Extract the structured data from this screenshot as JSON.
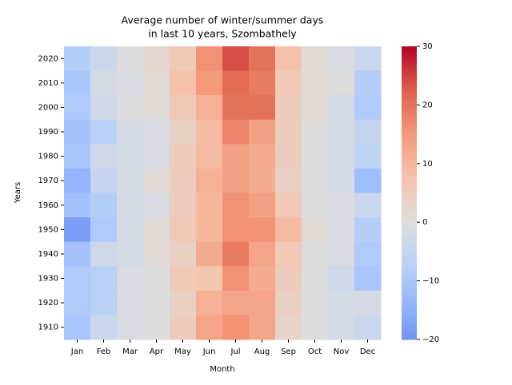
{
  "chart_data": {
    "type": "heatmap",
    "title": [
      "Average number of winter/summer days",
      "in last 10 years, Szombathely"
    ],
    "xlabel": "Month",
    "ylabel": "Years",
    "categories": [
      "Jan",
      "Feb",
      "Mar",
      "Apr",
      "May",
      "Jun",
      "Jul",
      "Aug",
      "Sep",
      "Oct",
      "Nov",
      "Dec"
    ],
    "y_categories": [
      2020,
      2010,
      2000,
      1990,
      1980,
      1970,
      1960,
      1950,
      1940,
      1930,
      1920,
      1910
    ],
    "values": [
      [
        -8,
        -4,
        0,
        2,
        6,
        16,
        24,
        20,
        8,
        1,
        -1,
        -4
      ],
      [
        -10,
        -2,
        -1,
        1,
        8,
        15,
        21,
        19,
        6,
        1,
        0,
        -8
      ],
      [
        -9,
        -3,
        0,
        1,
        6,
        11,
        20,
        20,
        5,
        1,
        -2,
        -9
      ],
      [
        -11,
        -7,
        -2,
        -1,
        4,
        9,
        18,
        14,
        5,
        0,
        -2,
        -5
      ],
      [
        -10,
        -3,
        -2,
        -1,
        5,
        9,
        14,
        12,
        5,
        0,
        -2,
        -6
      ],
      [
        -14,
        -5,
        -2,
        1,
        5,
        11,
        14,
        12,
        4,
        0,
        -2,
        -12
      ],
      [
        -11,
        -8,
        -2,
        -1,
        5,
        10,
        16,
        14,
        6,
        0,
        -1,
        -4
      ],
      [
        -18,
        -9,
        -2,
        1,
        6,
        10,
        16,
        16,
        9,
        1,
        -1,
        -8
      ],
      [
        -11,
        -3,
        -2,
        1,
        4,
        12,
        19,
        13,
        6,
        0,
        -1,
        -9
      ],
      [
        -9,
        -7,
        -1,
        0,
        6,
        7,
        16,
        12,
        5,
        0,
        -3,
        -10
      ],
      [
        -9,
        -7,
        -1,
        0,
        4,
        11,
        13,
        13,
        4,
        0,
        -2,
        -2
      ],
      [
        -10,
        -4,
        -1,
        0,
        5,
        13,
        16,
        13,
        3,
        0,
        -2,
        -4
      ]
    ],
    "colormap": "coolwarm",
    "center": 0,
    "clim": [
      -20,
      30
    ],
    "cticks": [
      {
        "value": -20,
        "label": "−20"
      },
      {
        "value": -10,
        "label": "−10"
      },
      0,
      10,
      20,
      30
    ]
  }
}
